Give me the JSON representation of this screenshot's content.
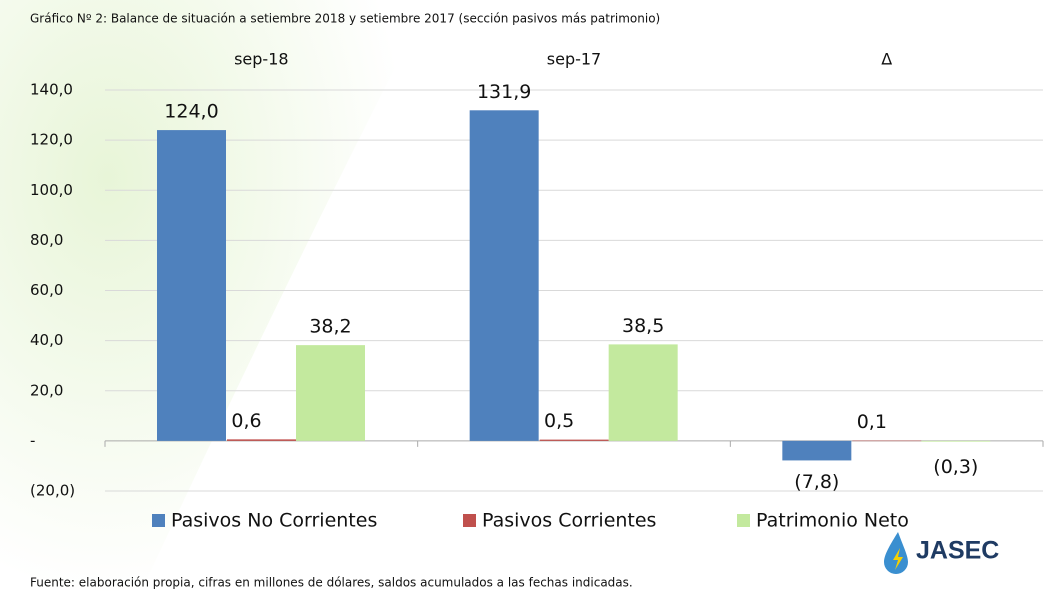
{
  "chart_data": {
    "type": "bar",
    "title": "Gráfico Nº 2: Balance de situación a setiembre 2018 y setiembre 2017  (sección pasivos más patrimonio)",
    "categories": [
      "sep-18",
      "sep-17",
      "Δ"
    ],
    "series": [
      {
        "name": "Pasivos No Corrientes",
        "color": "#4f81bd",
        "values": [
          124.0,
          131.9,
          -7.8
        ],
        "value_labels": [
          "124,0",
          "131,9",
          "(7,8)"
        ]
      },
      {
        "name": "Pasivos Corrientes",
        "color": "#c0504d",
        "values": [
          0.6,
          0.5,
          0.1
        ],
        "value_labels": [
          "0,6",
          "0,5",
          "0,1"
        ]
      },
      {
        "name": "Patrimonio Neto",
        "color": "#c3e99e",
        "values": [
          38.2,
          38.5,
          -0.3
        ],
        "value_labels": [
          "38,2",
          "38,5",
          "(0,3)"
        ]
      }
    ],
    "ylim": [
      -20,
      140
    ],
    "yticks": [
      {
        "value": -20,
        "label": "(20,0)"
      },
      {
        "value": 0,
        "label": "-"
      },
      {
        "value": 20,
        "label": "20,0"
      },
      {
        "value": 40,
        "label": "40,0"
      },
      {
        "value": 60,
        "label": "60,0"
      },
      {
        "value": 80,
        "label": "80,0"
      },
      {
        "value": 100,
        "label": "100,0"
      },
      {
        "value": 120,
        "label": "120,0"
      },
      {
        "value": 140,
        "label": "140,0"
      }
    ],
    "grid": true,
    "legend": "bottom",
    "footnote": "Fuente: elaboración propia, cifras en millones de dólares, saldos acumulados a las fechas indicadas.",
    "logo": "JASEC"
  }
}
